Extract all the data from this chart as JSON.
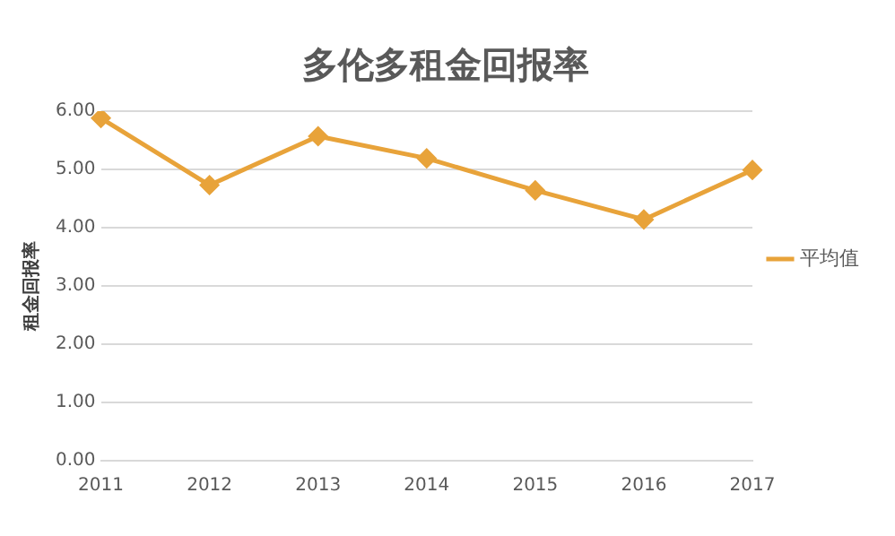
{
  "chart_data": {
    "type": "line",
    "title": "多伦多租金回报率",
    "ylabel": "租金回报率",
    "categories": [
      "2011",
      "2012",
      "2013",
      "2014",
      "2015",
      "2016",
      "2017"
    ],
    "series": [
      {
        "name": "平均值",
        "color": "#e8a33a",
        "values": [
          5.88,
          4.73,
          5.57,
          5.19,
          4.64,
          4.14,
          4.99
        ]
      }
    ],
    "ylim": [
      0,
      6
    ],
    "yticks": [
      {
        "value": 0,
        "label": "0.00"
      },
      {
        "value": 1,
        "label": "1.00"
      },
      {
        "value": 2,
        "label": "2.00"
      },
      {
        "value": 3,
        "label": "3.00"
      },
      {
        "value": 4,
        "label": "4.00"
      },
      {
        "value": 5,
        "label": "5.00"
      },
      {
        "value": 6,
        "label": "6.00"
      }
    ],
    "grid": "y",
    "legend": "right",
    "marker": "diamond",
    "line_style": "solid"
  }
}
